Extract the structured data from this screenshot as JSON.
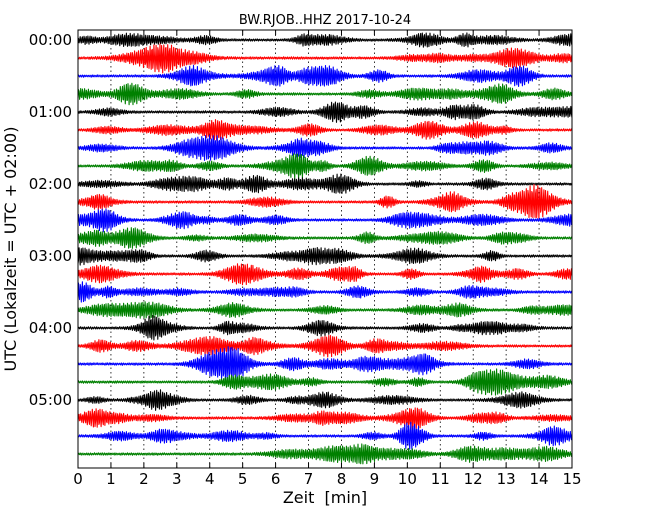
{
  "chart_data": {
    "type": "line",
    "title": "BW.RJOB..HHZ 2017-10-24",
    "xlabel": "Zeit  [min]",
    "ylabel": "UTC (Lokalzeit = UTC + 02:00)",
    "xlim": [
      0,
      15
    ],
    "x_ticks": [
      "0",
      "1",
      "2",
      "3",
      "4",
      "5",
      "6",
      "7",
      "8",
      "9",
      "10",
      "11",
      "12",
      "13",
      "14",
      "15"
    ],
    "y_ticks": [
      "00:00",
      "01:00",
      "02:00",
      "03:00",
      "04:00",
      "05:00"
    ],
    "trace_interval_minutes": 15,
    "trace_count": 24,
    "trace_colors": [
      "#000000",
      "#ff0000",
      "#0000ff",
      "#008000"
    ],
    "grid": "vertical dotted",
    "legend": "none",
    "series": [
      {
        "start": "00:00"
      },
      {
        "start": "00:15"
      },
      {
        "start": "00:30"
      },
      {
        "start": "00:45"
      },
      {
        "start": "01:00"
      },
      {
        "start": "01:15"
      },
      {
        "start": "01:30"
      },
      {
        "start": "01:45"
      },
      {
        "start": "02:00"
      },
      {
        "start": "02:15"
      },
      {
        "start": "02:30"
      },
      {
        "start": "02:45"
      },
      {
        "start": "03:00"
      },
      {
        "start": "03:15"
      },
      {
        "start": "03:30"
      },
      {
        "start": "03:45"
      },
      {
        "start": "04:00"
      },
      {
        "start": "04:15"
      },
      {
        "start": "04:30"
      },
      {
        "start": "04:45"
      },
      {
        "start": "05:00"
      },
      {
        "start": "05:15"
      },
      {
        "start": "05:30"
      },
      {
        "start": "05:45"
      }
    ]
  }
}
